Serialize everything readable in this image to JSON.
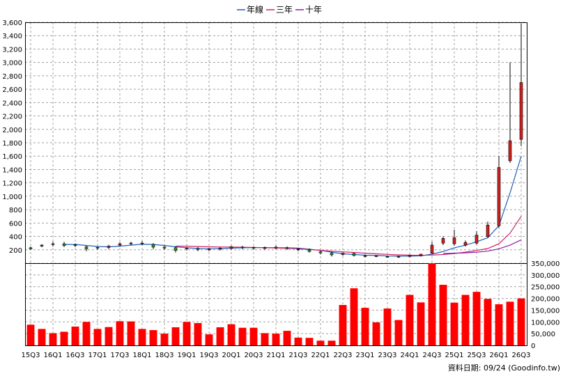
{
  "legend": [
    {
      "label": "年線",
      "color": "#1f5fb8"
    },
    {
      "label": "三年",
      "color": "#d0206a"
    },
    {
      "label": "十年",
      "color": "#8a1fa6"
    }
  ],
  "credit": "資料日期: 09/24  (Goodinfo.tw)",
  "colors": {
    "up": "#d22020",
    "down": "#22a022",
    "volume": "#ff0000",
    "wick": "#000000",
    "grid": "#a0a0a0"
  },
  "chart_data": [
    {
      "type": "candlestick",
      "grid": true,
      "legend_position": "top-center",
      "ylim": [
        0,
        3600
      ],
      "y_ticks": [
        200,
        400,
        600,
        800,
        1000,
        1200,
        1400,
        1600,
        1800,
        2000,
        2200,
        2400,
        2600,
        2800,
        3000,
        3200,
        3400,
        3600
      ],
      "y_tick_labels": [
        "200",
        "400",
        "600",
        "800",
        "1,000",
        "1,200",
        "1,400",
        "1,600",
        "1,800",
        "2,000",
        "2,200",
        "2,400",
        "2,600",
        "2,800",
        "3,000",
        "3,200",
        "3,400",
        "3,600"
      ],
      "quarters": [
        "15Q3",
        "15Q4",
        "16Q1",
        "16Q2",
        "16Q3",
        "16Q4",
        "17Q1",
        "17Q2",
        "17Q3",
        "17Q4",
        "18Q1",
        "18Q2",
        "18Q3",
        "18Q4",
        "19Q1",
        "19Q2",
        "19Q3",
        "19Q4",
        "20Q1",
        "20Q2",
        "20Q3",
        "20Q4",
        "21Q1",
        "21Q2",
        "21Q3",
        "21Q4",
        "22Q1",
        "22Q2",
        "22Q3",
        "22Q4",
        "23Q1",
        "23Q2",
        "23Q3",
        "23Q4",
        "24Q1",
        "24Q2",
        "24Q3",
        "24Q4",
        "25Q1",
        "25Q2",
        "25Q3",
        "25Q4",
        "26Q1",
        "26Q2",
        "26Q3"
      ],
      "x_tick_labels": [
        "15Q3",
        "16Q1",
        "16Q3",
        "17Q1",
        "17Q3",
        "18Q1",
        "18Q3",
        "19Q1",
        "19Q3",
        "20Q1",
        "20Q3",
        "21Q1",
        "21Q3",
        "22Q1",
        "22Q3",
        "23Q1",
        "23Q3",
        "24Q1",
        "24Q3",
        "25Q1",
        "25Q3",
        "26Q1",
        "26Q3"
      ],
      "ohlc": [
        [
          230,
          250,
          200,
          215
        ],
        [
          255,
          285,
          240,
          270
        ],
        [
          280,
          320,
          250,
          290
        ],
        [
          290,
          320,
          240,
          265
        ],
        [
          275,
          295,
          240,
          270
        ],
        [
          245,
          260,
          180,
          215
        ],
        [
          235,
          255,
          200,
          225
        ],
        [
          235,
          275,
          210,
          255
        ],
        [
          270,
          315,
          250,
          290
        ],
        [
          290,
          320,
          270,
          300
        ],
        [
          300,
          330,
          270,
          290
        ],
        [
          280,
          300,
          210,
          240
        ],
        [
          240,
          260,
          200,
          225
        ],
        [
          230,
          250,
          160,
          190
        ],
        [
          215,
          240,
          190,
          225
        ],
        [
          220,
          240,
          180,
          205
        ],
        [
          200,
          230,
          180,
          215
        ],
        [
          210,
          240,
          190,
          225
        ],
        [
          220,
          260,
          200,
          245
        ],
        [
          240,
          260,
          210,
          230
        ],
        [
          225,
          250,
          200,
          235
        ],
        [
          220,
          250,
          200,
          235
        ],
        [
          225,
          260,
          210,
          240
        ],
        [
          230,
          250,
          200,
          220
        ],
        [
          210,
          230,
          180,
          200
        ],
        [
          200,
          220,
          160,
          175
        ],
        [
          170,
          190,
          130,
          155
        ],
        [
          150,
          170,
          100,
          125
        ],
        [
          130,
          160,
          110,
          150
        ],
        [
          145,
          160,
          100,
          115
        ],
        [
          110,
          130,
          90,
          105
        ],
        [
          105,
          120,
          90,
          110
        ],
        [
          100,
          115,
          85,
          95
        ],
        [
          95,
          115,
          80,
          100
        ],
        [
          100,
          130,
          90,
          120
        ],
        [
          110,
          140,
          100,
          135
        ],
        [
          150,
          320,
          140,
          270
        ],
        [
          300,
          400,
          270,
          370
        ],
        [
          290,
          500,
          260,
          380
        ],
        [
          270,
          340,
          250,
          310
        ],
        [
          300,
          480,
          280,
          420
        ],
        [
          400,
          620,
          380,
          570
        ],
        [
          560,
          1600,
          530,
          1430
        ],
        [
          1530,
          3000,
          1500,
          1830
        ],
        [
          1850,
          3580,
          1750,
          2700
        ]
      ],
      "series": [
        {
          "name": "年線",
          "color": "#1f5fb8",
          "values": [
            null,
            null,
            null,
            280,
            280,
            265,
            250,
            245,
            255,
            270,
            285,
            280,
            265,
            245,
            230,
            220,
            215,
            220,
            225,
            230,
            232,
            232,
            232,
            230,
            225,
            210,
            190,
            165,
            140,
            130,
            120,
            115,
            108,
            105,
            105,
            110,
            135,
            175,
            230,
            270,
            320,
            380,
            560,
            1050,
            1600
          ]
        },
        {
          "name": "三年",
          "color": "#d0206a",
          "values": [
            null,
            null,
            null,
            null,
            null,
            null,
            null,
            null,
            null,
            null,
            null,
            null,
            null,
            255,
            255,
            250,
            245,
            242,
            240,
            238,
            235,
            232,
            228,
            222,
            215,
            205,
            192,
            180,
            170,
            160,
            150,
            140,
            132,
            125,
            120,
            118,
            122,
            130,
            145,
            165,
            190,
            220,
            290,
            450,
            700
          ]
        },
        {
          "name": "十年",
          "color": "#8a1fa6",
          "values": [
            null,
            null,
            null,
            null,
            null,
            null,
            null,
            null,
            null,
            null,
            null,
            null,
            null,
            null,
            null,
            null,
            null,
            null,
            null,
            null,
            null,
            null,
            null,
            null,
            null,
            null,
            null,
            null,
            null,
            null,
            null,
            null,
            null,
            null,
            null,
            null,
            null,
            145,
            150,
            155,
            165,
            180,
            215,
            270,
            350
          ]
        }
      ]
    },
    {
      "type": "bar",
      "ylim": [
        0,
        350000
      ],
      "y_ticks": [
        0,
        50000,
        100000,
        150000,
        200000,
        250000,
        300000,
        350000
      ],
      "y_tick_labels": [
        "0",
        "50,000",
        "100,000",
        "150,000",
        "200,000",
        "250,000",
        "300,000",
        "350,000"
      ],
      "values": [
        88000,
        70000,
        52000,
        58000,
        80000,
        100000,
        70000,
        78000,
        103000,
        102000,
        70000,
        65000,
        50000,
        77000,
        100000,
        95000,
        47000,
        77000,
        90000,
        75000,
        75000,
        52000,
        50000,
        62000,
        33000,
        32000,
        20000,
        20000,
        172000,
        243000,
        160000,
        98000,
        157000,
        108000,
        215000,
        183000,
        350000,
        258000,
        182000,
        215000,
        228000,
        198000,
        175000,
        186000,
        200000
      ]
    }
  ]
}
